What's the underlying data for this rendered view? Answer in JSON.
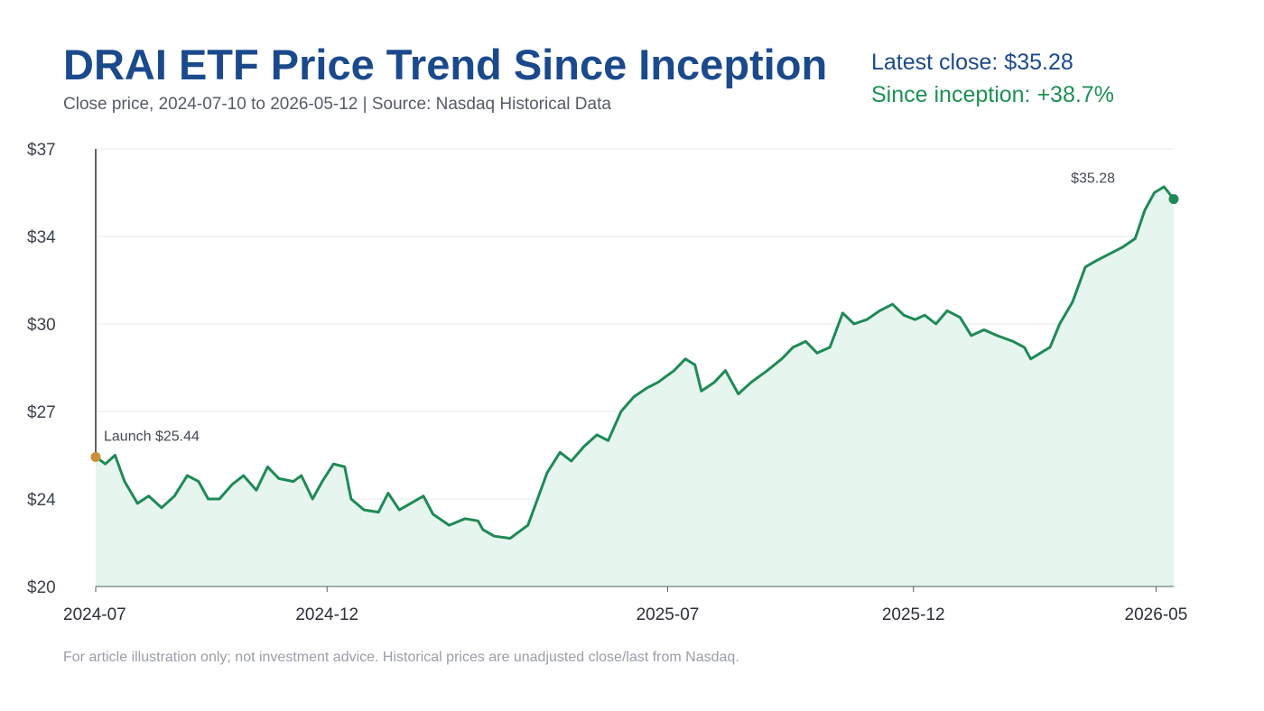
{
  "header": {
    "title": "DRAI ETF Price Trend Since Inception",
    "subtitle": "Close price, 2024-07-10 to 2026-05-12 | Source: Nasdaq Historical Data",
    "latest_close": "Latest close: $35.28",
    "since_inception": "Since inception: +38.7%"
  },
  "footnote": "For article illustration only; not investment advice. Historical prices are unadjusted close/last from Nasdaq.",
  "colors": {
    "title": "#1b4a8c",
    "line": "#1e8a55",
    "area_fill": "#e6f5ee",
    "launch_marker": "#c9913a",
    "positive": "#1e9055"
  },
  "chart_data": {
    "type": "area",
    "title": "DRAI ETF Price Trend Since Inception",
    "xlabel": "",
    "ylabel": "",
    "ylim": [
      20,
      37
    ],
    "xlim": [
      "2024-07-10",
      "2026-05-12"
    ],
    "grid": true,
    "y_ticks": [
      {
        "value": 20,
        "label": "$20"
      },
      {
        "value": 24,
        "label": "$24"
      },
      {
        "value": 27,
        "label": "$27"
      },
      {
        "value": 30,
        "label": "$30"
      },
      {
        "value": 34,
        "label": "$34"
      },
      {
        "value": 37,
        "label": "$37"
      }
    ],
    "x_ticks": [
      {
        "date": "2024-07-10",
        "label": "2024-07"
      },
      {
        "date": "2024-12-01",
        "label": "2024-12"
      },
      {
        "date": "2025-07-01",
        "label": "2025-07"
      },
      {
        "date": "2025-12-01",
        "label": "2025-12"
      },
      {
        "date": "2026-05-01",
        "label": "2026-05"
      }
    ],
    "annotations": [
      {
        "date": "2024-07-10",
        "value": 25.44,
        "label": "Launch $25.44",
        "kind": "launch"
      },
      {
        "date": "2026-05-12",
        "value": 35.28,
        "label": "$35.28",
        "kind": "latest"
      }
    ],
    "series": [
      {
        "points": [
          [
            "2024-07-10",
            25.44
          ],
          [
            "2024-07-16",
            25.2
          ],
          [
            "2024-07-22",
            25.5
          ],
          [
            "2024-07-28",
            24.6
          ],
          [
            "2024-08-05",
            23.8
          ],
          [
            "2024-08-12",
            24.1
          ],
          [
            "2024-08-20",
            23.6
          ],
          [
            "2024-08-28",
            24.1
          ],
          [
            "2024-09-05",
            24.8
          ],
          [
            "2024-09-12",
            24.6
          ],
          [
            "2024-09-18",
            24.0
          ],
          [
            "2024-09-25",
            24.0
          ],
          [
            "2024-10-03",
            24.5
          ],
          [
            "2024-10-10",
            24.8
          ],
          [
            "2024-10-18",
            24.3
          ],
          [
            "2024-10-25",
            25.1
          ],
          [
            "2024-11-01",
            24.7
          ],
          [
            "2024-11-10",
            24.6
          ],
          [
            "2024-11-15",
            24.8
          ],
          [
            "2024-11-22",
            24.0
          ],
          [
            "2024-11-28",
            24.6
          ],
          [
            "2024-12-05",
            25.2
          ],
          [
            "2024-12-12",
            25.1
          ],
          [
            "2024-12-16",
            24.0
          ],
          [
            "2024-12-24",
            23.5
          ],
          [
            "2025-01-02",
            23.4
          ],
          [
            "2025-01-08",
            24.2
          ],
          [
            "2025-01-15",
            23.5
          ],
          [
            "2025-01-22",
            23.8
          ],
          [
            "2025-01-30",
            24.1
          ],
          [
            "2025-02-05",
            23.3
          ],
          [
            "2025-02-15",
            22.8
          ],
          [
            "2025-02-25",
            23.1
          ],
          [
            "2025-03-05",
            23.0
          ],
          [
            "2025-03-08",
            22.6
          ],
          [
            "2025-03-15",
            22.3
          ],
          [
            "2025-03-25",
            22.2
          ],
          [
            "2025-04-05",
            22.8
          ],
          [
            "2025-04-10",
            23.8
          ],
          [
            "2025-04-17",
            24.9
          ],
          [
            "2025-04-25",
            25.6
          ],
          [
            "2025-05-02",
            25.3
          ],
          [
            "2025-05-10",
            25.8
          ],
          [
            "2025-05-18",
            26.2
          ],
          [
            "2025-05-25",
            26.0
          ],
          [
            "2025-06-02",
            27.0
          ],
          [
            "2025-06-10",
            27.5
          ],
          [
            "2025-06-18",
            27.8
          ],
          [
            "2025-06-25",
            28.0
          ],
          [
            "2025-07-05",
            28.4
          ],
          [
            "2025-07-12",
            28.8
          ],
          [
            "2025-07-18",
            28.6
          ],
          [
            "2025-07-22",
            27.7
          ],
          [
            "2025-07-30",
            28.0
          ],
          [
            "2025-08-06",
            28.4
          ],
          [
            "2025-08-14",
            27.6
          ],
          [
            "2025-08-22",
            28.0
          ],
          [
            "2025-09-01",
            28.4
          ],
          [
            "2025-09-10",
            28.8
          ],
          [
            "2025-09-17",
            29.2
          ],
          [
            "2025-09-25",
            29.4
          ],
          [
            "2025-10-02",
            29.0
          ],
          [
            "2025-10-10",
            29.2
          ],
          [
            "2025-10-18",
            30.5
          ],
          [
            "2025-10-25",
            30.0
          ],
          [
            "2025-11-02",
            30.2
          ],
          [
            "2025-11-10",
            30.6
          ],
          [
            "2025-11-18",
            30.9
          ],
          [
            "2025-11-25",
            30.4
          ],
          [
            "2025-12-02",
            30.2
          ],
          [
            "2025-12-08",
            30.4
          ],
          [
            "2025-12-15",
            30.0
          ],
          [
            "2025-12-22",
            30.6
          ],
          [
            "2025-12-30",
            30.3
          ],
          [
            "2026-01-06",
            29.6
          ],
          [
            "2026-01-14",
            29.8
          ],
          [
            "2026-01-22",
            29.6
          ],
          [
            "2026-02-01",
            29.4
          ],
          [
            "2026-02-08",
            29.2
          ],
          [
            "2026-02-12",
            28.8
          ],
          [
            "2026-02-18",
            29.0
          ],
          [
            "2026-02-24",
            29.2
          ],
          [
            "2026-03-02",
            30.0
          ],
          [
            "2026-03-10",
            31.0
          ],
          [
            "2026-03-18",
            32.6
          ],
          [
            "2026-03-25",
            32.9
          ],
          [
            "2026-04-02",
            33.2
          ],
          [
            "2026-04-10",
            33.5
          ],
          [
            "2026-04-18",
            33.9
          ],
          [
            "2026-04-24",
            34.9
          ],
          [
            "2026-04-30",
            35.5
          ],
          [
            "2026-05-06",
            35.7
          ],
          [
            "2026-05-12",
            35.28
          ]
        ]
      }
    ]
  }
}
